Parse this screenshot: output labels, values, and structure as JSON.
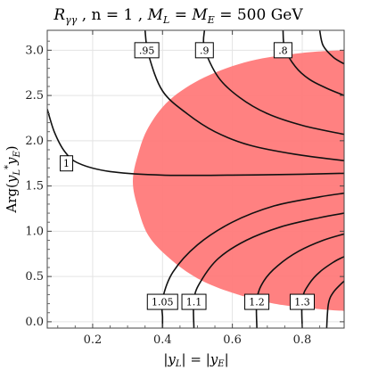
{
  "chart_data": {
    "type": "contour",
    "title": {
      "r_symbol": "R",
      "r_subscript": "γγ",
      "rest": " ,  n = 1 ,  ",
      "m_l": "M",
      "m_l_sub": "L",
      "eq": " = ",
      "m_e": "M",
      "m_e_sub": "E",
      "value": " = 500 GeV"
    },
    "xlabel": "|y_L| = |y_E|",
    "ylabel": "Arg(y_L* y_E)",
    "xlim": [
      0.07,
      0.92
    ],
    "ylim": [
      -0.07,
      3.22
    ],
    "xticks": [
      0.2,
      0.4,
      0.6,
      0.8
    ],
    "xtick_labels": [
      "0.2",
      "0.4",
      "0.6",
      "0.8"
    ],
    "yticks": [
      0.0,
      0.5,
      1.0,
      1.5,
      2.0,
      2.5,
      3.0
    ],
    "ytick_labels": [
      "0.0",
      "0.5",
      "1.0",
      "1.5",
      "2.0",
      "2.5",
      "3.0"
    ],
    "grid": true,
    "shaded_region": {
      "color": "#ff7a7a",
      "boundary": [
        [
          0.92,
          3.0
        ],
        [
          0.8,
          2.97
        ],
        [
          0.65,
          2.88
        ],
        [
          0.52,
          2.7
        ],
        [
          0.42,
          2.45
        ],
        [
          0.36,
          2.15
        ],
        [
          0.33,
          1.85
        ],
        [
          0.315,
          1.55
        ],
        [
          0.33,
          1.25
        ],
        [
          0.36,
          0.95
        ],
        [
          0.42,
          0.7
        ],
        [
          0.5,
          0.48
        ],
        [
          0.6,
          0.32
        ],
        [
          0.72,
          0.2
        ],
        [
          0.85,
          0.14
        ],
        [
          0.92,
          0.12
        ]
      ]
    },
    "contours": [
      {
        "level": "1",
        "points": [
          [
            0.07,
            2.35
          ],
          [
            0.09,
            2.1
          ],
          [
            0.12,
            1.88
          ],
          [
            0.16,
            1.75
          ],
          [
            0.25,
            1.66
          ],
          [
            0.4,
            1.62
          ],
          [
            0.6,
            1.62
          ],
          [
            0.8,
            1.63
          ],
          [
            0.92,
            1.64
          ]
        ]
      },
      {
        "level": ".95",
        "points": [
          [
            0.35,
            3.22
          ],
          [
            0.36,
            2.95
          ],
          [
            0.4,
            2.55
          ],
          [
            0.47,
            2.3
          ],
          [
            0.55,
            2.1
          ],
          [
            0.65,
            1.95
          ],
          [
            0.78,
            1.85
          ],
          [
            0.92,
            1.78
          ]
        ]
      },
      {
        "level": ".9",
        "points": [
          [
            0.52,
            3.22
          ],
          [
            0.52,
            3.02
          ],
          [
            0.56,
            2.7
          ],
          [
            0.62,
            2.48
          ],
          [
            0.7,
            2.3
          ],
          [
            0.8,
            2.17
          ],
          [
            0.92,
            2.07
          ]
        ]
      },
      {
        "level": ".8",
        "points": [
          [
            0.745,
            3.22
          ],
          [
            0.75,
            3.02
          ],
          [
            0.78,
            2.82
          ],
          [
            0.82,
            2.68
          ],
          [
            0.87,
            2.58
          ],
          [
            0.92,
            2.5
          ]
        ]
      },
      {
        "level": "",
        "points": [
          [
            0.85,
            3.22
          ],
          [
            0.86,
            3.05
          ],
          [
            0.89,
            2.92
          ],
          [
            0.92,
            2.85
          ]
        ]
      },
      {
        "level": "1.05",
        "points": [
          [
            0.4,
            -0.07
          ],
          [
            0.4,
            0.05
          ],
          [
            0.4,
            0.25
          ],
          [
            0.43,
            0.55
          ],
          [
            0.5,
            0.85
          ],
          [
            0.6,
            1.1
          ],
          [
            0.72,
            1.28
          ],
          [
            0.85,
            1.38
          ],
          [
            0.92,
            1.42
          ]
        ]
      },
      {
        "level": "1.1",
        "points": [
          [
            0.49,
            -0.07
          ],
          [
            0.49,
            0.25
          ],
          [
            0.51,
            0.45
          ],
          [
            0.56,
            0.7
          ],
          [
            0.64,
            0.9
          ],
          [
            0.74,
            1.05
          ],
          [
            0.85,
            1.15
          ],
          [
            0.92,
            1.2
          ]
        ]
      },
      {
        "level": "1.2",
        "points": [
          [
            0.67,
            -0.07
          ],
          [
            0.67,
            0.25
          ],
          [
            0.69,
            0.45
          ],
          [
            0.73,
            0.62
          ],
          [
            0.79,
            0.78
          ],
          [
            0.86,
            0.9
          ],
          [
            0.92,
            0.97
          ]
        ]
      },
      {
        "level": "1.3",
        "points": [
          [
            0.8,
            -0.07
          ],
          [
            0.8,
            0.25
          ],
          [
            0.82,
            0.42
          ],
          [
            0.85,
            0.55
          ],
          [
            0.89,
            0.66
          ],
          [
            0.92,
            0.72
          ]
        ]
      },
      {
        "level": "",
        "points": [
          [
            0.87,
            -0.07
          ],
          [
            0.875,
            0.2
          ],
          [
            0.89,
            0.33
          ],
          [
            0.92,
            0.45
          ]
        ]
      }
    ],
    "contour_labels": [
      {
        "text": "1",
        "x": 0.125,
        "y": 1.75
      },
      {
        "text": ".95",
        "x": 0.355,
        "y": 3.0
      },
      {
        "text": ".9",
        "x": 0.52,
        "y": 3.0
      },
      {
        "text": ".8",
        "x": 0.745,
        "y": 3.0
      },
      {
        "text": "1.05",
        "x": 0.4,
        "y": 0.22
      },
      {
        "text": "1.1",
        "x": 0.49,
        "y": 0.22
      },
      {
        "text": "1.2",
        "x": 0.67,
        "y": 0.22
      },
      {
        "text": "1.3",
        "x": 0.8,
        "y": 0.22
      }
    ],
    "colors": {
      "region": "#ff7a7a",
      "contour": "#111111",
      "grid": "#e3e3e3"
    }
  }
}
